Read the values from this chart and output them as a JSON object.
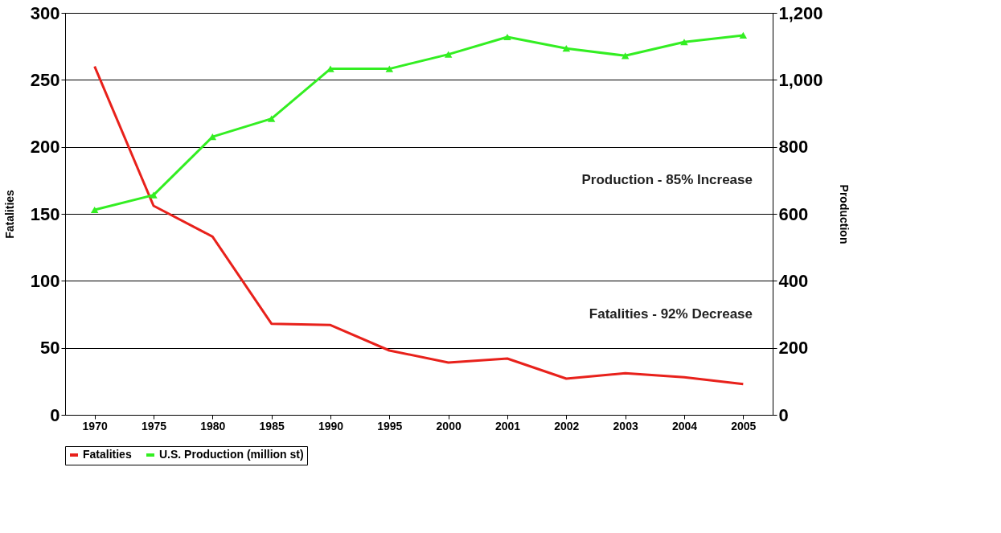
{
  "chart_data": {
    "type": "line",
    "ylabel": "Fatalities",
    "y2label": "Production",
    "categories": [
      "1970",
      "1975",
      "1980",
      "1985",
      "1990",
      "1995",
      "2000",
      "2001",
      "2002",
      "2003",
      "2004",
      "2005"
    ],
    "series": [
      {
        "name": "Fatalities",
        "color": "#e8211b",
        "marker": "none",
        "values": [
          260,
          156,
          133,
          68,
          67,
          48,
          39,
          42,
          27,
          31,
          28,
          23
        ]
      },
      {
        "name": "U.S. Production (million st)",
        "color": "#33ee22",
        "marker": "triangle",
        "axis": "y2",
        "values": [
          612,
          656,
          830,
          884,
          1033,
          1033,
          1076,
          1128,
          1094,
          1072,
          1113,
          1133
        ]
      }
    ],
    "ylim": [
      0,
      300
    ],
    "yticks": [
      0,
      50,
      100,
      150,
      200,
      250,
      300
    ],
    "y2lim": [
      0,
      1200
    ],
    "y2ticks": [
      0,
      {
        "value": 200,
        "label": "200"
      },
      {
        "value": 400,
        "label": "400"
      },
      {
        "value": 600,
        "label": "600"
      },
      {
        "value": 800,
        "label": "800"
      },
      {
        "value": 1000,
        "label": "1,000"
      },
      {
        "value": 1200,
        "label": "1,200"
      }
    ],
    "grid": "y",
    "legend": "bottom",
    "annotations": [
      "Production - 85% Increase",
      "Fatalities - 92% Decrease"
    ]
  }
}
